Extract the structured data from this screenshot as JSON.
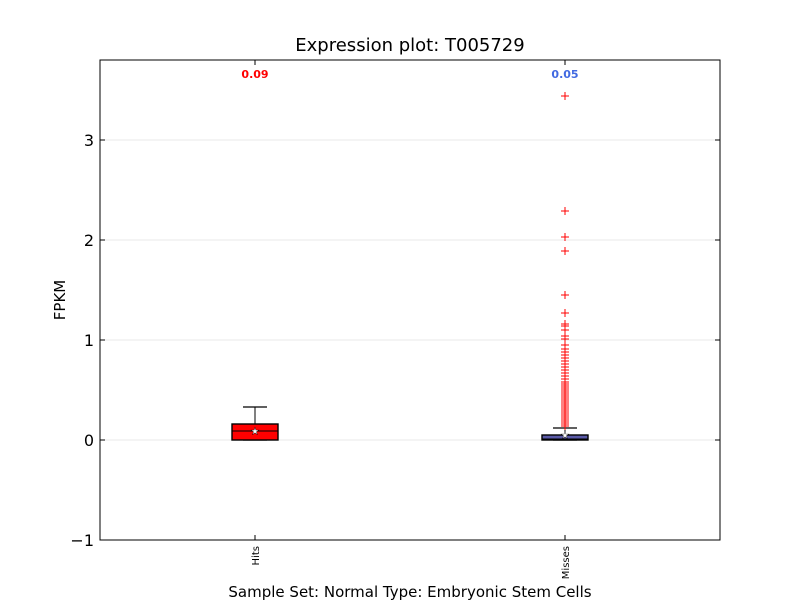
{
  "chart_data": {
    "type": "box",
    "title": "Expression plot: T005729",
    "xlabel": "Sample Set: Normal Type: Embryonic Stem Cells",
    "ylabel": "FPKM",
    "ylim": [
      -1,
      3.8
    ],
    "yticks": [
      "−1",
      "0",
      "1",
      "2",
      "3"
    ],
    "grid": true,
    "categories": [
      "Hits",
      "Misses"
    ],
    "boxes": [
      {
        "name": "Hits",
        "color": "#ff0000",
        "annotation": "0.09",
        "annotation_color": "#ff0000",
        "q1": 0.0,
        "median": 0.09,
        "q3": 0.16,
        "whisker_low": 0.0,
        "whisker_high": 0.33,
        "mean": 0.09,
        "outliers": []
      },
      {
        "name": "Misses",
        "color": "#5a5aa8",
        "annotation": "0.05",
        "annotation_color": "#4169e1",
        "q1": 0.0,
        "median": 0.01,
        "q3": 0.05,
        "whisker_low": 0.0,
        "whisker_high": 0.12,
        "mean": 0.05,
        "outliers": [
          3.44,
          2.29,
          2.03,
          1.89,
          1.45,
          1.27,
          1.16,
          1.14,
          1.1,
          1.04,
          1.01,
          0.95,
          0.91,
          0.88,
          0.85,
          0.82,
          0.79,
          0.76,
          0.73,
          0.7,
          0.67,
          0.64,
          0.61,
          0.58,
          0.56,
          0.54,
          0.52,
          0.5,
          0.48,
          0.46,
          0.44,
          0.42,
          0.4,
          0.38,
          0.36,
          0.34,
          0.32,
          0.3,
          0.28,
          0.26,
          0.24,
          0.22,
          0.2,
          0.18,
          0.16,
          0.14
        ]
      }
    ]
  }
}
